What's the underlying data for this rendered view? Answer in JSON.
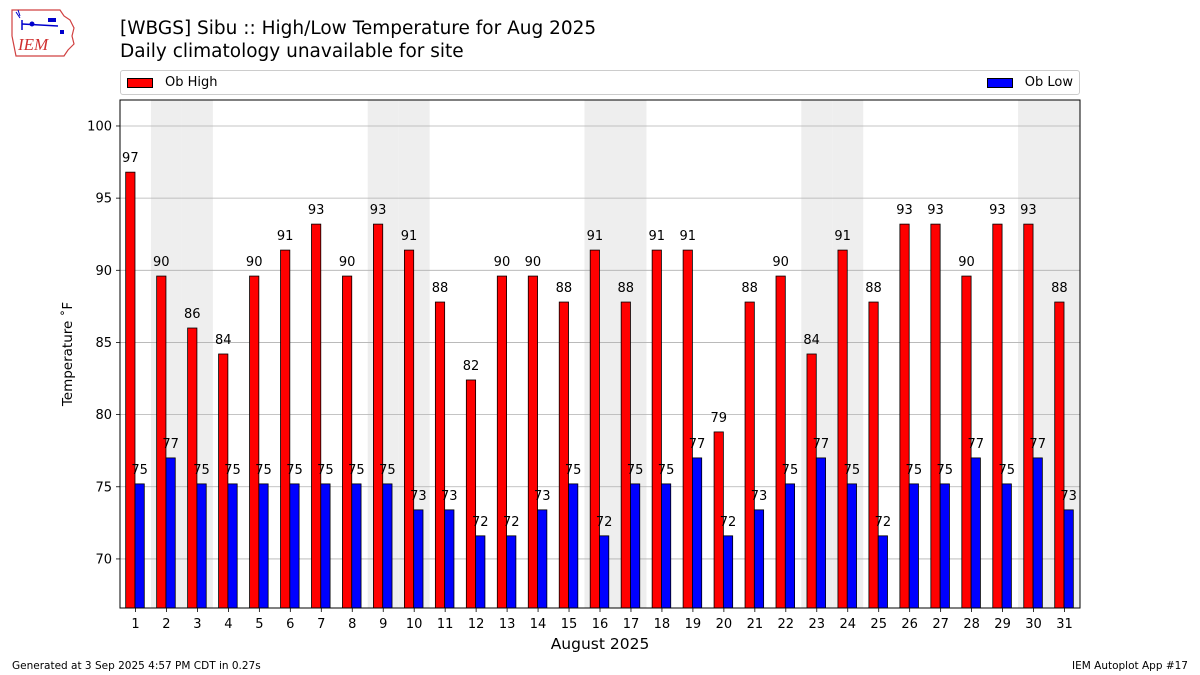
{
  "logo": {
    "text": "IEM"
  },
  "title": "[WBGS] Sibu :: High/Low Temperature for Aug 2025",
  "subtitle": "Daily climatology unavailable for site",
  "footer": {
    "generated": "Generated at 3 Sep 2025 4:57 PM CDT in 0.27s",
    "app": "IEM Autoplot App #17"
  },
  "chart_data": {
    "type": "bar",
    "title": "[WBGS] Sibu :: High/Low Temperature for Aug 2025",
    "subtitle": "Daily climatology unavailable for site",
    "xlabel": "August 2025",
    "ylabel": "Temperature ˚F",
    "ylim": [
      66.6,
      101.8
    ],
    "yticks": [
      70,
      75,
      80,
      85,
      90,
      95,
      100
    ],
    "grid": true,
    "legend_placement": "top",
    "categories": [
      "1",
      "2",
      "3",
      "4",
      "5",
      "6",
      "7",
      "8",
      "9",
      "10",
      "11",
      "12",
      "13",
      "14",
      "15",
      "16",
      "17",
      "18",
      "19",
      "20",
      "21",
      "22",
      "23",
      "24",
      "25",
      "26",
      "27",
      "28",
      "29",
      "30",
      "31"
    ],
    "weekend_shading": [
      "2",
      "3",
      "9",
      "10",
      "16",
      "17",
      "23",
      "24",
      "30",
      "31"
    ],
    "series": [
      {
        "name": "Ob High",
        "color": "#ff0000",
        "values": [
          96.8,
          89.6,
          86.0,
          84.2,
          89.6,
          91.4,
          93.2,
          89.6,
          93.2,
          91.4,
          87.8,
          82.4,
          89.6,
          89.6,
          87.8,
          91.4,
          87.8,
          91.4,
          91.4,
          78.8,
          87.8,
          89.6,
          84.2,
          91.4,
          87.8,
          93.2,
          93.2,
          89.6,
          93.2,
          93.2,
          87.8
        ],
        "labels": [
          "97",
          "90",
          "86",
          "84",
          "90",
          "91",
          "93",
          "90",
          "93",
          "91",
          "88",
          "82",
          "90",
          "90",
          "88",
          "91",
          "88",
          "91",
          "91",
          "79",
          "88",
          "90",
          "84",
          "91",
          "88",
          "93",
          "93",
          "90",
          "93",
          "93",
          "88"
        ]
      },
      {
        "name": "Ob Low",
        "color": "#0000ff",
        "values": [
          75.2,
          77.0,
          75.2,
          75.2,
          75.2,
          75.2,
          75.2,
          75.2,
          75.2,
          73.4,
          73.4,
          71.6,
          71.6,
          73.4,
          75.2,
          71.6,
          75.2,
          75.2,
          77.0,
          71.6,
          73.4,
          75.2,
          77.0,
          75.2,
          71.6,
          75.2,
          75.2,
          77.0,
          75.2,
          77.0,
          73.4
        ],
        "labels": [
          "75",
          "77",
          "75",
          "75",
          "75",
          "75",
          "75",
          "75",
          "75",
          "73",
          "73",
          "72",
          "72",
          "73",
          "75",
          "72",
          "75",
          "75",
          "77",
          "72",
          "73",
          "75",
          "77",
          "75",
          "72",
          "75",
          "75",
          "77",
          "75",
          "77",
          "73"
        ]
      }
    ]
  }
}
